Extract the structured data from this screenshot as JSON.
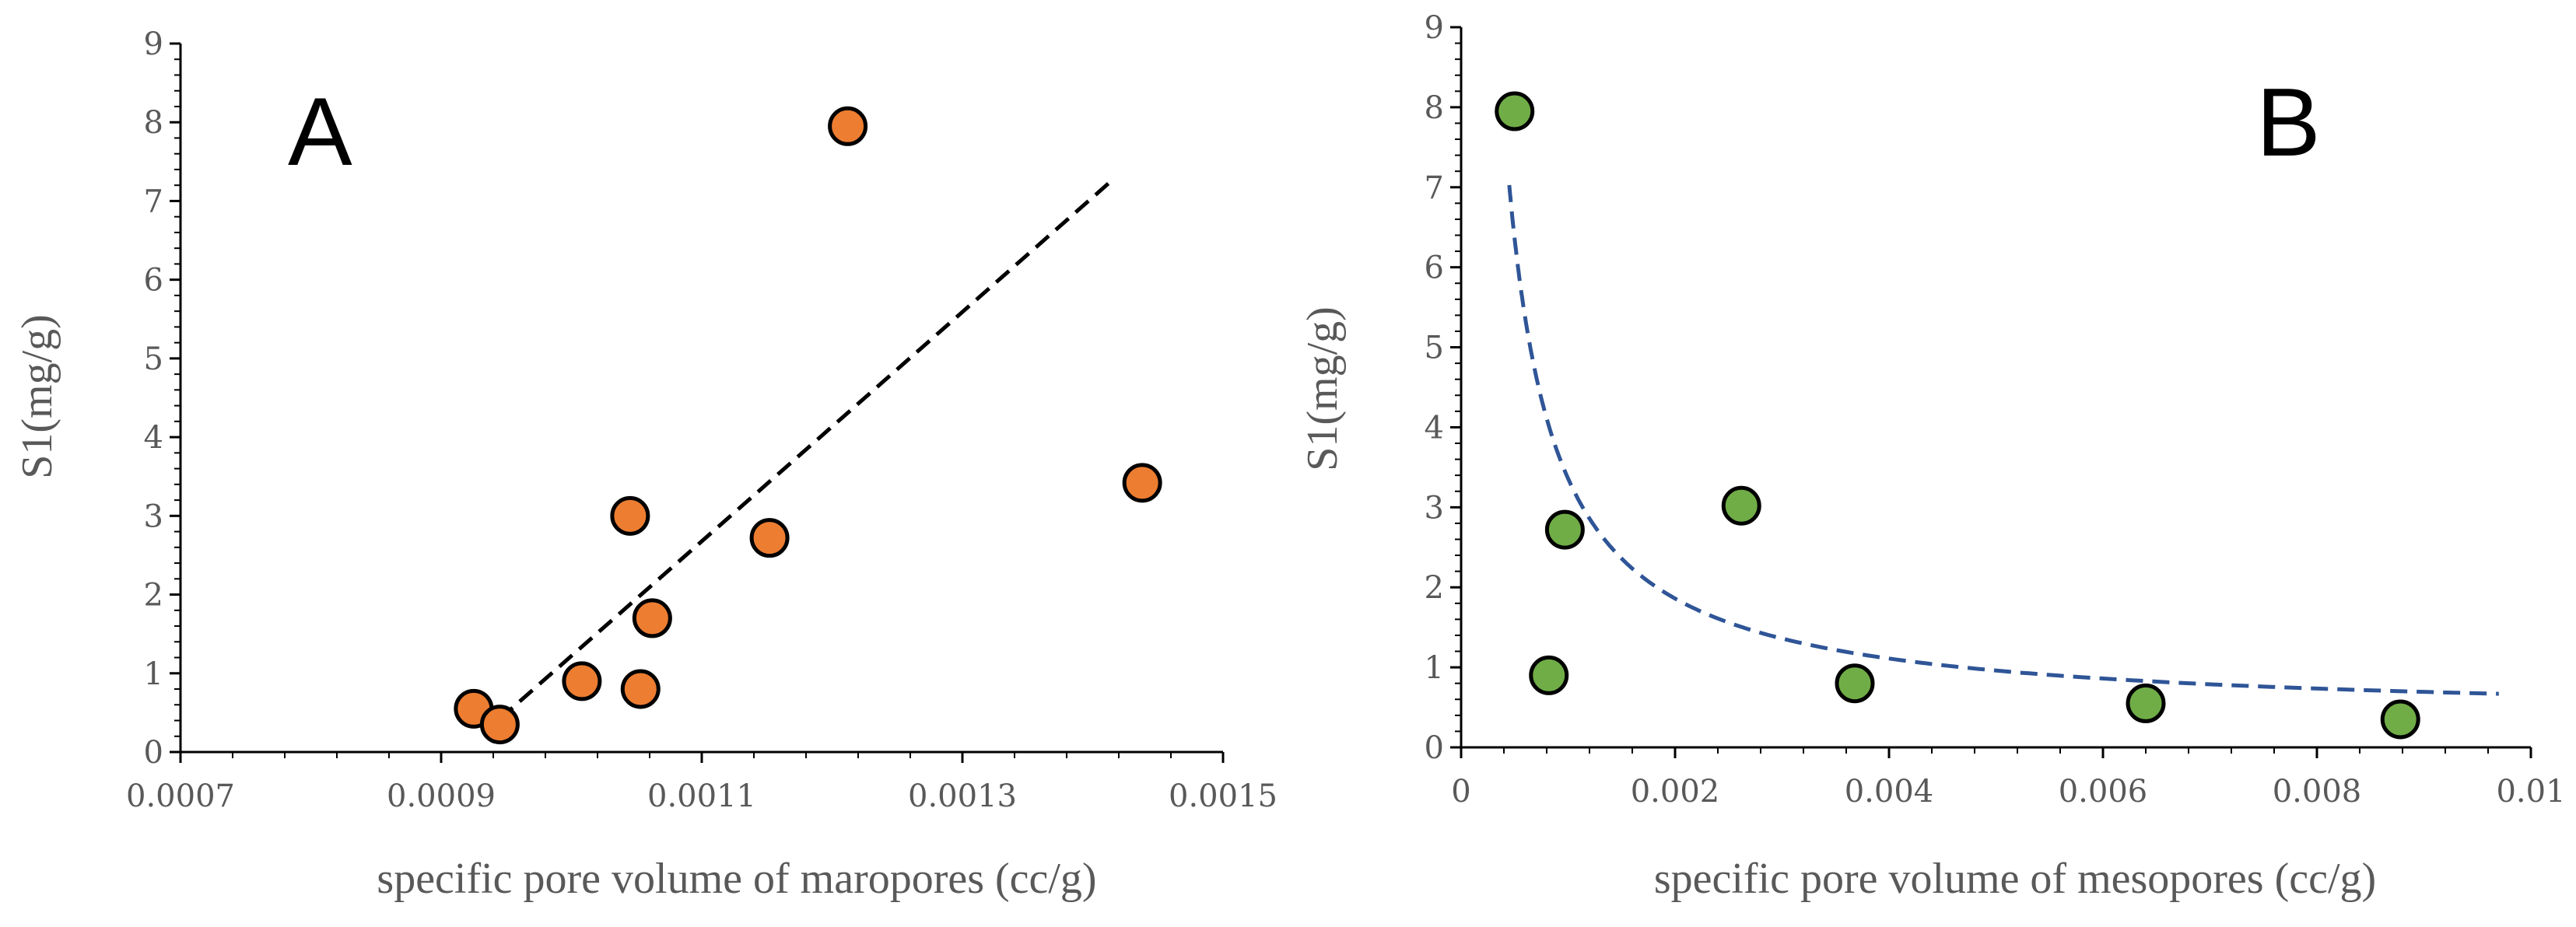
{
  "chart_data": [
    {
      "type": "scatter",
      "panel_label": "A",
      "xlabel": "specific pore volume of maropores (cc/g)",
      "ylabel": "S1(mg/g)",
      "xlim": [
        0.0007,
        0.0015
      ],
      "ylim": [
        0,
        9
      ],
      "x_ticks": [
        0.0007,
        0.0009,
        0.0011,
        0.0013,
        0.0015
      ],
      "x_tick_labels": [
        "0.0007",
        "0.0009",
        "0.0011",
        "0.0013",
        "0.0015"
      ],
      "y_ticks": [
        0,
        1,
        2,
        3,
        4,
        5,
        6,
        7,
        8,
        9
      ],
      "y_tick_labels": [
        "0",
        "1",
        "2",
        "3",
        "4",
        "5",
        "6",
        "7",
        "8",
        "9"
      ],
      "grid": false,
      "legend": "none",
      "series": [
        {
          "marker_color": "#ED7D31",
          "points": [
            {
              "x": 0.000925,
              "y": 0.55
            },
            {
              "x": 0.000945,
              "y": 0.35
            },
            {
              "x": 0.001008,
              "y": 0.9
            },
            {
              "x": 0.001045,
              "y": 3.0
            },
            {
              "x": 0.001053,
              "y": 0.8
            },
            {
              "x": 0.001062,
              "y": 1.7
            },
            {
              "x": 0.001152,
              "y": 2.72
            },
            {
              "x": 0.001212,
              "y": 7.95
            },
            {
              "x": 0.001438,
              "y": 3.42
            }
          ]
        }
      ],
      "trendline": {
        "kind": "linear",
        "color": "#000000",
        "style": "dashed",
        "x": [
          0.000945,
          0.001416
        ],
        "y": [
          0.42,
          7.28
        ]
      }
    },
    {
      "type": "scatter",
      "panel_label": "B",
      "xlabel": "specific pore volume of mesopores (cc/g)",
      "ylabel": "S1(mg/g)",
      "xlim": [
        0,
        0.01
      ],
      "ylim": [
        0,
        9
      ],
      "x_ticks": [
        0,
        0.002,
        0.004,
        0.006,
        0.008,
        0.01
      ],
      "x_tick_labels": [
        "0",
        "0.002",
        "0.004",
        "0.006",
        "0.008",
        "0.01"
      ],
      "y_ticks": [
        0,
        1,
        2,
        3,
        4,
        5,
        6,
        7,
        8,
        9
      ],
      "y_tick_labels": [
        "0",
        "1",
        "2",
        "3",
        "4",
        "5",
        "6",
        "7",
        "8",
        "9"
      ],
      "grid": false,
      "legend": "none",
      "series": [
        {
          "marker_color": "#70AD47",
          "points": [
            {
              "x": 0.0005,
              "y": 7.95
            },
            {
              "x": 0.00082,
              "y": 0.9
            },
            {
              "x": 0.00097,
              "y": 2.72
            },
            {
              "x": 0.00262,
              "y": 3.02
            },
            {
              "x": 0.00368,
              "y": 0.8
            },
            {
              "x": 0.0064,
              "y": 0.55
            },
            {
              "x": 0.00878,
              "y": 0.35
            }
          ]
        }
      ],
      "trendline": {
        "kind": "hyperbolic",
        "color": "#2F5597",
        "style": "dashed",
        "a": 0.003,
        "b": 0.36,
        "x_start": 0.00045,
        "x_end": 0.0097
      }
    }
  ]
}
